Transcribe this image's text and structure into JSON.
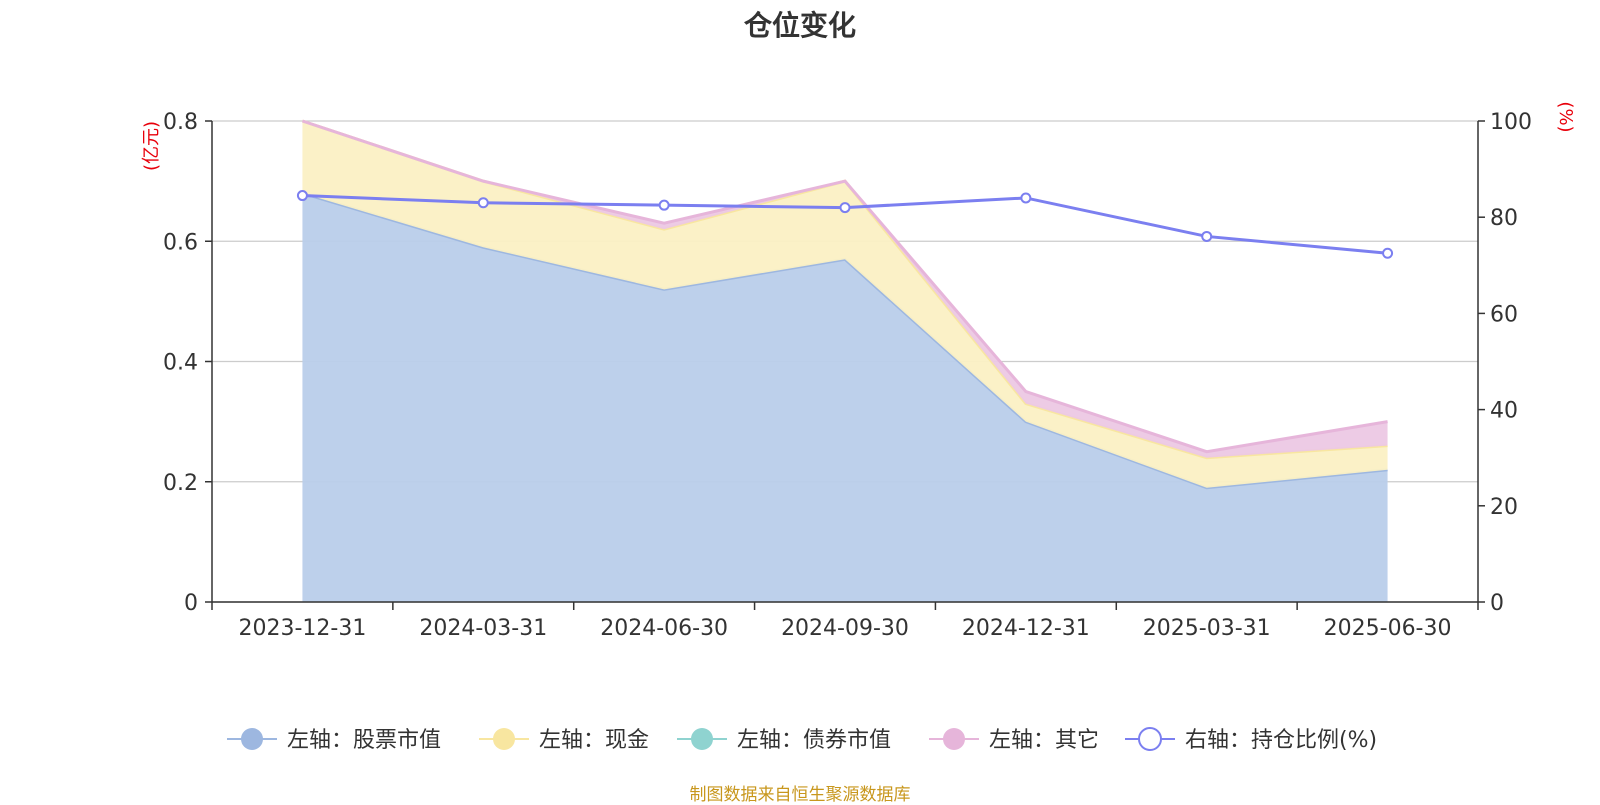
{
  "chart_data": {
    "type": "area",
    "title": "仓位变化",
    "categories": [
      "2023-12-31",
      "2024-03-31",
      "2024-06-30",
      "2024-09-30",
      "2024-12-31",
      "2025-03-31",
      "2025-06-30"
    ],
    "left_axis": {
      "unit": "(亿元)",
      "ylim": [
        0,
        0.8
      ],
      "ticks": [
        "0",
        "0.2",
        "0.4",
        "0.6",
        "0.8"
      ]
    },
    "right_axis": {
      "unit": "(%)",
      "ylim": [
        0,
        100
      ],
      "ticks": [
        "0",
        "20",
        "40",
        "60",
        "80",
        "100"
      ]
    },
    "series": [
      {
        "name": "左轴：股票市值",
        "axis": "left",
        "stacked": true,
        "color": "#9db7e0",
        "fill": "#b9cdea",
        "values": [
          0.68,
          0.59,
          0.52,
          0.57,
          0.3,
          0.19,
          0.22
        ]
      },
      {
        "name": "左轴：现金",
        "axis": "left",
        "stacked": true,
        "color": "#f8e6a0",
        "fill": "#fbf0c4",
        "values": [
          0.12,
          0.11,
          0.1,
          0.13,
          0.03,
          0.05,
          0.04
        ]
      },
      {
        "name": "左轴：债券市值",
        "axis": "left",
        "stacked": true,
        "color": "#8fd3d0",
        "fill": "#bde6e4",
        "values": [
          0,
          0,
          0,
          0,
          0,
          0,
          0
        ]
      },
      {
        "name": "左轴：其它",
        "axis": "left",
        "stacked": true,
        "color": "#e6b5da",
        "fill": "#ecc8e4",
        "values": [
          0.0,
          0.0,
          0.01,
          0.0,
          0.02,
          0.01,
          0.04
        ]
      },
      {
        "name": "右轴：持仓比例(%)",
        "axis": "right",
        "type": "line",
        "color": "#7b7ff0",
        "values": [
          84.5,
          83.0,
          82.5,
          82.0,
          84.0,
          76.0,
          72.5
        ]
      }
    ],
    "legend_position": "bottom-center",
    "grid": true
  },
  "source_note": "制图数据来自恒生聚源数据库"
}
